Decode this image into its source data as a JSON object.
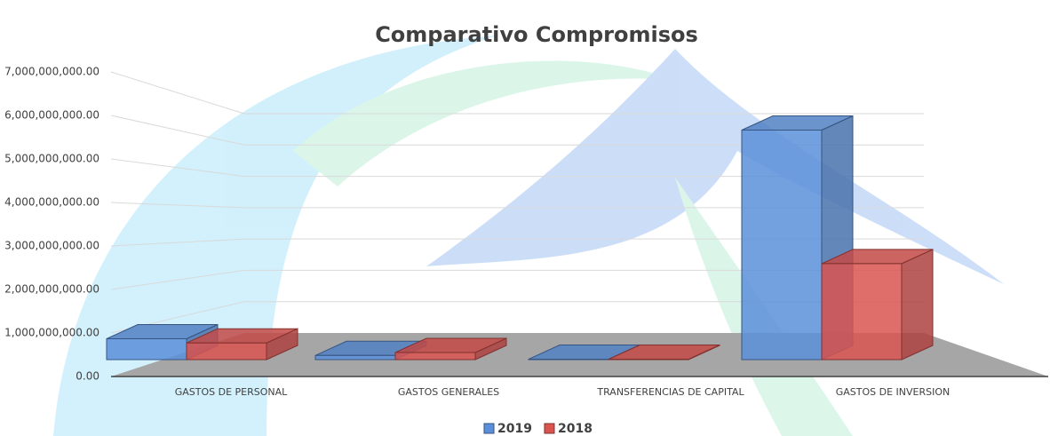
{
  "chart_data": {
    "type": "bar3d",
    "title": "Comparativo Compromisos",
    "categories": [
      "GASTOS DE PERSONAL",
      "GASTOS GENERALES",
      "TRANSFERENCIAS DE CAPITAL",
      "GASTOS DE INVERSION"
    ],
    "series": [
      {
        "name": "2019",
        "color": "#5b8fd9",
        "values": [
          500000000,
          100000000,
          10000000,
          5500000000
        ]
      },
      {
        "name": "2018",
        "color": "#d9534f",
        "values": [
          400000000,
          170000000,
          10000000,
          2300000000
        ]
      }
    ],
    "ylim": [
      0,
      7000000000
    ],
    "yticks": [
      {
        "value": 0,
        "label": "0.00"
      },
      {
        "value": 1000000000,
        "label": "1,000,000,000.00"
      },
      {
        "value": 2000000000,
        "label": "2,000,000,000.00"
      },
      {
        "value": 3000000000,
        "label": "3,000,000,000.00"
      },
      {
        "value": 4000000000,
        "label": "4,000,000,000.00"
      },
      {
        "value": 5000000000,
        "label": "5,000,000,000.00"
      },
      {
        "value": 6000000000,
        "label": "6,000,000,000.00"
      },
      {
        "value": 7000000000,
        "label": "7,000,000,000.00"
      }
    ],
    "grid": true,
    "legend": "bottom"
  }
}
